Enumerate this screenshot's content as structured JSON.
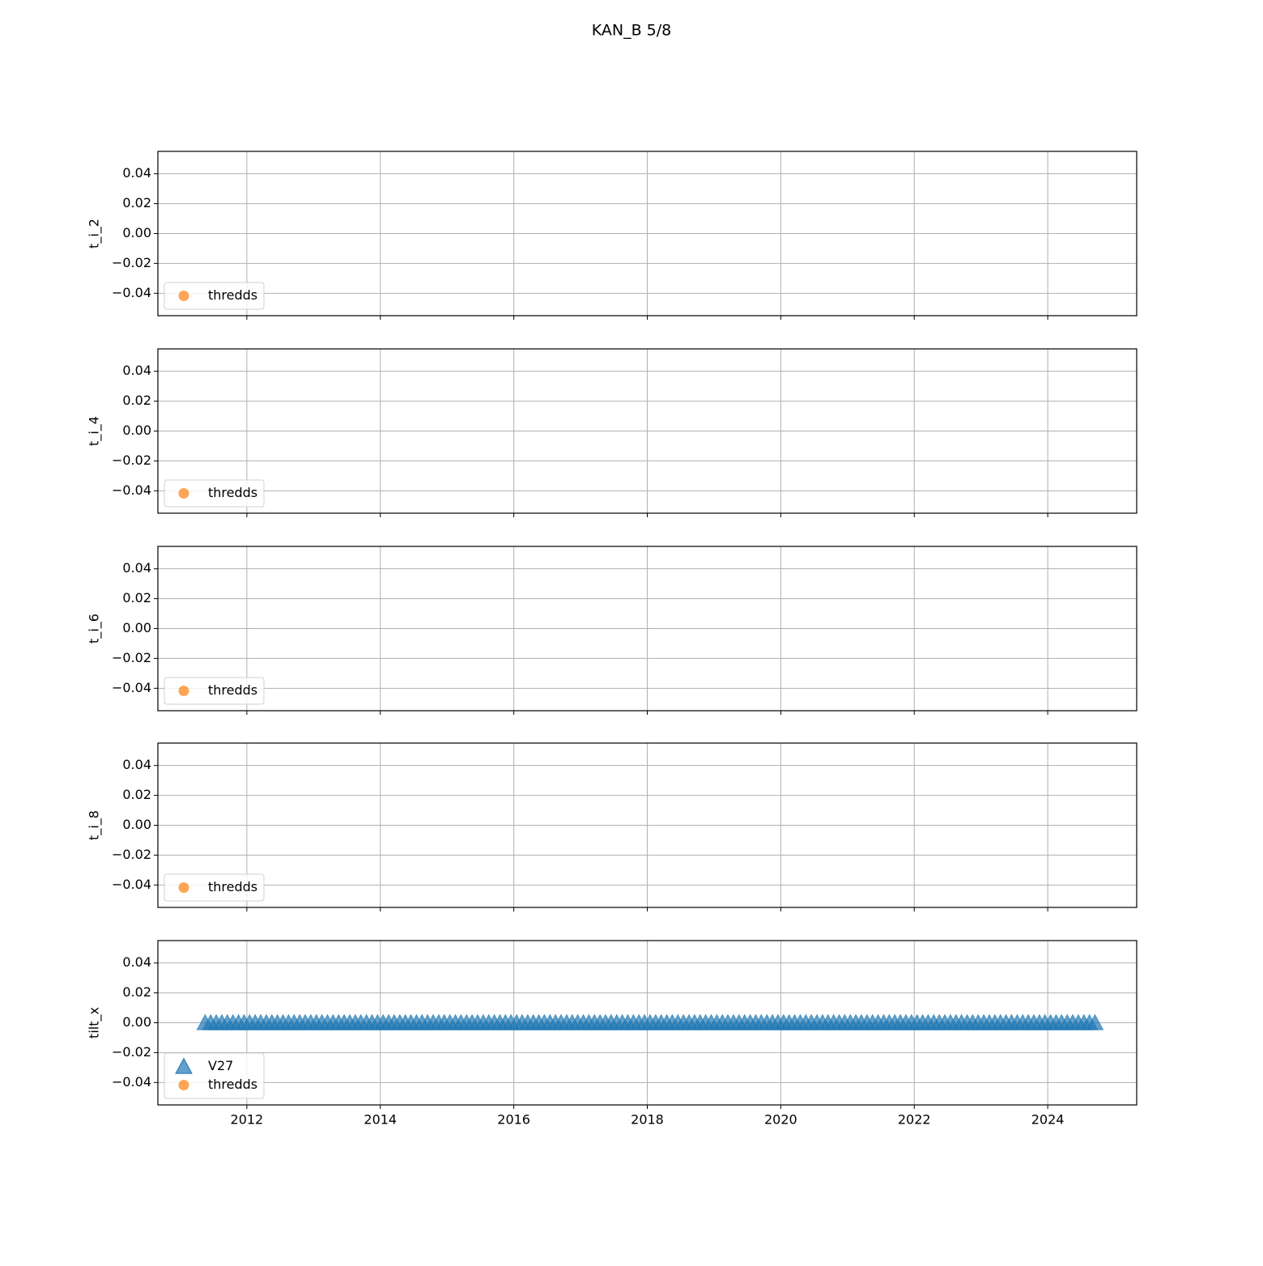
{
  "title": "KAN_B 5/8",
  "chart_data": [
    {
      "type": "scatter",
      "ylabel": "t_i_2",
      "xlim": [
        2010.667,
        2025.333
      ],
      "xticks": [
        2012,
        2014,
        2016,
        2018,
        2020,
        2022,
        2024
      ],
      "ylim": [
        -0.055,
        0.055
      ],
      "yticks": [
        {
          "value": -0.04,
          "label": "−0.04"
        },
        {
          "value": -0.02,
          "label": "−0.02"
        },
        {
          "value": 0,
          "label": "0.00"
        },
        0.02,
        0.04
      ],
      "grid": true,
      "legend": "lower left",
      "series": [
        {
          "name": "thredds",
          "color": "#ff7f0e",
          "marker": "circle",
          "x": [],
          "values": []
        }
      ]
    },
    {
      "type": "scatter",
      "ylabel": "t_i_4",
      "xlim": [
        2010.667,
        2025.333
      ],
      "xticks": [
        2012,
        2014,
        2016,
        2018,
        2020,
        2022,
        2024
      ],
      "ylim": [
        -0.055,
        0.055
      ],
      "yticks": [
        {
          "value": -0.04,
          "label": "−0.04"
        },
        {
          "value": -0.02,
          "label": "−0.02"
        },
        {
          "value": 0,
          "label": "0.00"
        },
        0.02,
        0.04
      ],
      "grid": true,
      "legend": "lower left",
      "series": [
        {
          "name": "thredds",
          "color": "#ff7f0e",
          "marker": "circle",
          "x": [],
          "values": []
        }
      ]
    },
    {
      "type": "scatter",
      "ylabel": "t_i_6",
      "xlim": [
        2010.667,
        2025.333
      ],
      "xticks": [
        2012,
        2014,
        2016,
        2018,
        2020,
        2022,
        2024
      ],
      "ylim": [
        -0.055,
        0.055
      ],
      "yticks": [
        {
          "value": -0.04,
          "label": "−0.04"
        },
        {
          "value": -0.02,
          "label": "−0.02"
        },
        {
          "value": 0,
          "label": "0.00"
        },
        0.02,
        0.04
      ],
      "grid": true,
      "legend": "lower left",
      "series": [
        {
          "name": "thredds",
          "color": "#ff7f0e",
          "marker": "circle",
          "x": [],
          "values": []
        }
      ]
    },
    {
      "type": "scatter",
      "ylabel": "t_i_8",
      "xlim": [
        2010.667,
        2025.333
      ],
      "xticks": [
        2012,
        2014,
        2016,
        2018,
        2020,
        2022,
        2024
      ],
      "ylim": [
        -0.055,
        0.055
      ],
      "yticks": [
        {
          "value": -0.04,
          "label": "−0.04"
        },
        {
          "value": -0.02,
          "label": "−0.02"
        },
        {
          "value": 0,
          "label": "0.00"
        },
        0.02,
        0.04
      ],
      "grid": true,
      "legend": "lower left",
      "series": [
        {
          "name": "thredds",
          "color": "#ff7f0e",
          "marker": "circle",
          "x": [],
          "values": []
        }
      ]
    },
    {
      "type": "scatter",
      "ylabel": "tilt_x",
      "xlim": [
        2010.667,
        2025.333
      ],
      "xticks": [
        2012,
        2014,
        2016,
        2018,
        2020,
        2022,
        2024
      ],
      "ylim": [
        -0.055,
        0.055
      ],
      "yticks": [
        {
          "value": -0.04,
          "label": "−0.04"
        },
        {
          "value": -0.02,
          "label": "−0.02"
        },
        {
          "value": 0,
          "label": "0.00"
        },
        0.02,
        0.04
      ],
      "grid": true,
      "legend": "lower left",
      "xtick_labels": true,
      "series": [
        {
          "name": "V27",
          "color": "#1f77b4",
          "marker": "triangle",
          "x": [
            2011.375,
            2011.458,
            2011.542,
            2011.625,
            2011.708,
            2011.792,
            2011.875,
            2011.958,
            2012.042,
            2012.125,
            2012.208,
            2012.292,
            2012.375,
            2012.458,
            2012.542,
            2012.625,
            2012.708,
            2012.792,
            2012.875,
            2012.958,
            2013.042,
            2013.125,
            2013.208,
            2013.292,
            2013.375,
            2013.458,
            2013.542,
            2013.625,
            2013.708,
            2013.792,
            2013.875,
            2013.958,
            2014.042,
            2014.125,
            2014.208,
            2014.292,
            2014.375,
            2014.458,
            2014.542,
            2014.625,
            2014.708,
            2014.792,
            2014.875,
            2014.958,
            2015.042,
            2015.125,
            2015.208,
            2015.292,
            2015.375,
            2015.458,
            2015.542,
            2015.625,
            2015.708,
            2015.792,
            2015.875,
            2015.958,
            2016.042,
            2016.125,
            2016.208,
            2016.292,
            2016.375,
            2016.458,
            2016.542,
            2016.625,
            2016.708,
            2016.792,
            2016.875,
            2016.958,
            2017.042,
            2017.125,
            2017.208,
            2017.292,
            2017.375,
            2017.458,
            2017.542,
            2017.625,
            2017.708,
            2017.792,
            2017.875,
            2017.958,
            2018.042,
            2018.125,
            2018.208,
            2018.292,
            2018.375,
            2018.458,
            2018.542,
            2018.625,
            2018.708,
            2018.792,
            2018.875,
            2018.958,
            2019.042,
            2019.125,
            2019.208,
            2019.292,
            2019.375,
            2019.458,
            2019.542,
            2019.625,
            2019.708,
            2019.792,
            2019.875,
            2019.958,
            2020.042,
            2020.125,
            2020.208,
            2020.292,
            2020.375,
            2020.458,
            2020.542,
            2020.625,
            2020.708,
            2020.792,
            2020.875,
            2020.958,
            2021.042,
            2021.125,
            2021.208,
            2021.292,
            2021.375,
            2021.458,
            2021.542,
            2021.625,
            2021.708,
            2021.792,
            2021.875,
            2021.958,
            2022.042,
            2022.125,
            2022.208,
            2022.292,
            2022.375,
            2022.458,
            2022.542,
            2022.625,
            2022.708,
            2022.792,
            2022.875,
            2022.958,
            2023.042,
            2023.125,
            2023.208,
            2023.292,
            2023.375,
            2023.458,
            2023.542,
            2023.625,
            2023.708,
            2023.792,
            2023.875,
            2023.958,
            2024.042,
            2024.125,
            2024.208,
            2024.292,
            2024.375,
            2024.458,
            2024.542,
            2024.625,
            2024.708
          ],
          "values": [
            0,
            0,
            0,
            0,
            0,
            0,
            0,
            0,
            0,
            0,
            0,
            0,
            0,
            0,
            0,
            0,
            0,
            0,
            0,
            0,
            0,
            0,
            0,
            0,
            0,
            0,
            0,
            0,
            0,
            0,
            0,
            0,
            0,
            0,
            0,
            0,
            0,
            0,
            0,
            0,
            0,
            0,
            0,
            0,
            0,
            0,
            0,
            0,
            0,
            0,
            0,
            0,
            0,
            0,
            0,
            0,
            0,
            0,
            0,
            0,
            0,
            0,
            0,
            0,
            0,
            0,
            0,
            0,
            0,
            0,
            0,
            0,
            0,
            0,
            0,
            0,
            0,
            0,
            0,
            0,
            0,
            0,
            0,
            0,
            0,
            0,
            0,
            0,
            0,
            0,
            0,
            0,
            0,
            0,
            0,
            0,
            0,
            0,
            0,
            0,
            0,
            0,
            0,
            0,
            0,
            0,
            0,
            0,
            0,
            0,
            0,
            0,
            0,
            0,
            0,
            0,
            0,
            0,
            0,
            0,
            0,
            0,
            0,
            0,
            0,
            0,
            0,
            0,
            0,
            0,
            0,
            0,
            0,
            0,
            0,
            0,
            0,
            0,
            0,
            0,
            0,
            0,
            0,
            0,
            0,
            0,
            0,
            0,
            0,
            0,
            0,
            0,
            0,
            0,
            0,
            0,
            0,
            0,
            0,
            0,
            0
          ]
        },
        {
          "name": "thredds",
          "color": "#ff7f0e",
          "marker": "circle",
          "x": [],
          "values": []
        }
      ]
    }
  ]
}
